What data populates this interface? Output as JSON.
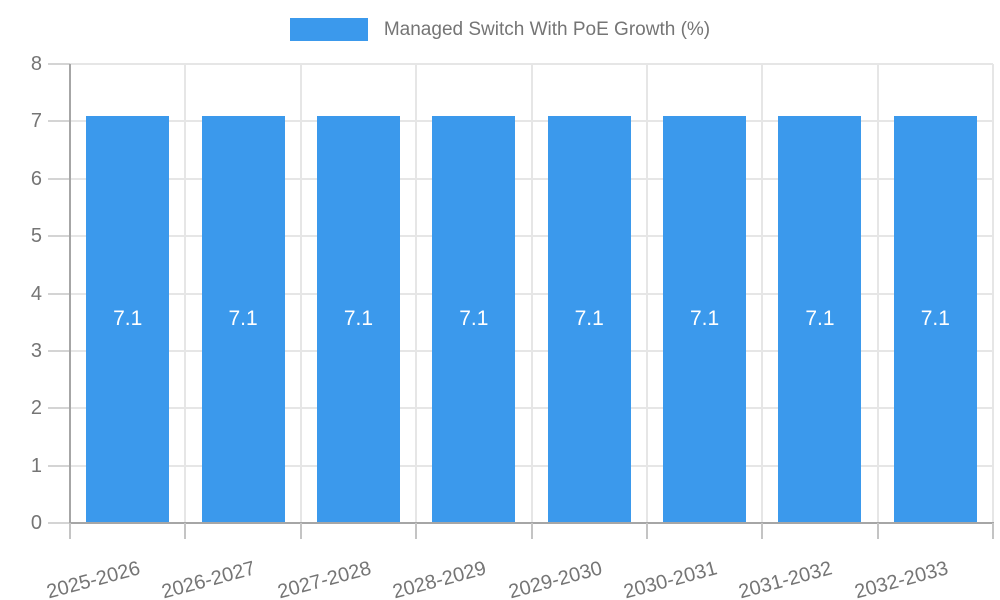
{
  "chart_data": {
    "type": "bar",
    "title": "Managed Switch With PoE Growth (%)",
    "categories": [
      "2025-2026",
      "2026-2027",
      "2027-2028",
      "2028-2029",
      "2029-2030",
      "2030-2031",
      "2031-2032",
      "2032-2033"
    ],
    "values": [
      7.1,
      7.1,
      7.1,
      7.1,
      7.1,
      7.1,
      7.1,
      7.1
    ],
    "bar_labels": [
      "7.1",
      "7.1",
      "7.1",
      "7.1",
      "7.1",
      "7.1",
      "7.1",
      "7.1"
    ],
    "xlabel": "",
    "ylabel": "",
    "ylim": [
      0,
      8
    ],
    "yticks": [
      0,
      1,
      2,
      3,
      4,
      5,
      6,
      7,
      8
    ],
    "grid": true,
    "legend_position": "top",
    "colors": {
      "bar": "#3b99ec",
      "bar_label": "#ffffff",
      "text": "#757575",
      "grid": "#e6e6e6",
      "axis": "#a6a6a6",
      "tick_y": "#d4d4d4",
      "tick_x": "#c4c4c4",
      "background": "#ffffff"
    }
  }
}
